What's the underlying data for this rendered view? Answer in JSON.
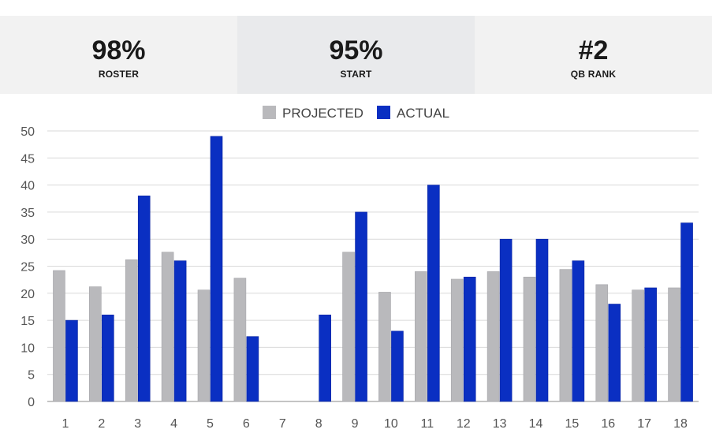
{
  "stats": [
    {
      "value": "98%",
      "label": "ROSTER",
      "bg": "#f2f2f2"
    },
    {
      "value": "95%",
      "label": "START",
      "bg": "#e9eaec"
    },
    {
      "value": "#2",
      "label": "QB RANK",
      "bg": "#f2f2f2"
    }
  ],
  "chart_data": {
    "type": "bar",
    "categories": [
      "1",
      "2",
      "3",
      "4",
      "5",
      "6",
      "7",
      "8",
      "9",
      "10",
      "11",
      "12",
      "13",
      "14",
      "15",
      "16",
      "17",
      "18"
    ],
    "series": [
      {
        "name": "PROJECTED",
        "color": "#b9b9bc",
        "values": [
          24.2,
          21.2,
          26.2,
          27.6,
          20.6,
          22.8,
          null,
          null,
          27.6,
          20.2,
          24,
          22.6,
          24,
          23,
          24.4,
          21.6,
          20.6,
          21
        ]
      },
      {
        "name": "ACTUAL",
        "color": "#0a2fc2",
        "values": [
          15,
          16,
          38,
          26,
          49,
          12,
          null,
          16,
          35,
          13,
          40,
          23,
          30,
          30,
          26,
          18,
          21,
          33
        ]
      }
    ],
    "ylim": [
      0,
      50
    ],
    "yticks": [
      0,
      5,
      10,
      15,
      20,
      25,
      30,
      35,
      40,
      45,
      50
    ],
    "grid": true,
    "legend": "top-center"
  }
}
